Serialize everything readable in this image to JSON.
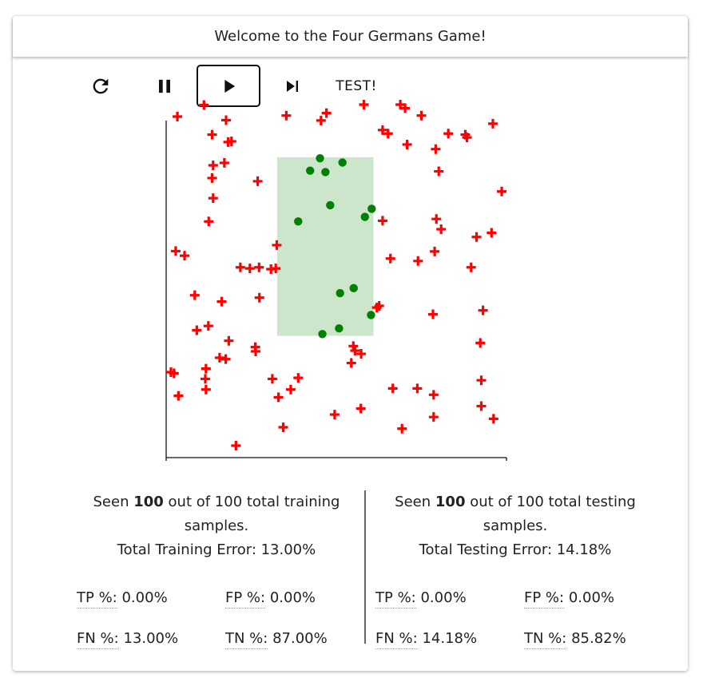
{
  "header": {
    "title": "Welcome to the Four Germans Game!"
  },
  "toolbar": {
    "reset_icon": "refresh-icon",
    "pause_icon": "pause-icon",
    "play_icon": "play-icon",
    "step_icon": "skip-next-icon",
    "test_label": "TEST!"
  },
  "colors": {
    "positive": "#008000",
    "negative": "#ff0000",
    "rectangle_fill": "#cce6cc"
  },
  "chart_data": {
    "type": "scatter",
    "xlim": [
      0,
      100
    ],
    "ylim": [
      0,
      100
    ],
    "rectangle": {
      "x0": 32.6,
      "x1": 60.9,
      "y0": 34.5,
      "y1": 85.1
    },
    "positive": [
      [
        45.2,
        84.8
      ],
      [
        51.8,
        83.6
      ],
      [
        42.3,
        81.3
      ],
      [
        46.8,
        80.9
      ],
      [
        48.2,
        71.5
      ],
      [
        60.4,
        70.5
      ],
      [
        38.8,
        66.9
      ],
      [
        58.4,
        68.2
      ],
      [
        51.1,
        46.6
      ],
      [
        55.1,
        48.0
      ],
      [
        60.2,
        40.4
      ],
      [
        45.9,
        35.0
      ],
      [
        50.8,
        36.6
      ]
    ],
    "negative": [
      [
        3.3,
        96.6
      ],
      [
        11.1,
        99.9
      ],
      [
        17.6,
        95.6
      ],
      [
        35.3,
        96.9
      ],
      [
        45.5,
        95.5
      ],
      [
        47.1,
        97.6
      ],
      [
        58.1,
        100.0
      ],
      [
        68.8,
        100.0
      ],
      [
        70.2,
        99.0
      ],
      [
        75.0,
        96.9
      ],
      [
        13.5,
        91.5
      ],
      [
        18.2,
        89.4
      ],
      [
        19.2,
        89.6
      ],
      [
        63.6,
        92.8
      ],
      [
        65.2,
        91.8
      ],
      [
        70.8,
        88.7
      ],
      [
        79.2,
        87.4
      ],
      [
        82.9,
        91.8
      ],
      [
        87.9,
        91.5
      ],
      [
        88.4,
        90.7
      ],
      [
        96.0,
        94.6
      ],
      [
        13.8,
        82.8
      ],
      [
        17.1,
        83.5
      ],
      [
        13.5,
        79.2
      ],
      [
        26.9,
        78.3
      ],
      [
        13.8,
        73.5
      ],
      [
        80.1,
        81.1
      ],
      [
        98.6,
        75.4
      ],
      [
        12.5,
        66.9
      ],
      [
        63.6,
        67.1
      ],
      [
        79.4,
        67.6
      ],
      [
        80.8,
        64.7
      ],
      [
        91.2,
        62.5
      ],
      [
        95.6,
        63.7
      ],
      [
        2.8,
        58.5
      ],
      [
        5.4,
        57.2
      ],
      [
        32.5,
        60.2
      ],
      [
        21.8,
        53.9
      ],
      [
        24.6,
        53.6
      ],
      [
        27.3,
        53.9
      ],
      [
        30.8,
        53.4
      ],
      [
        32.2,
        53.6
      ],
      [
        65.9,
        56.4
      ],
      [
        74.0,
        55.7
      ],
      [
        78.9,
        58.4
      ],
      [
        89.6,
        53.9
      ],
      [
        8.4,
        46.0
      ],
      [
        16.3,
        44.2
      ],
      [
        27.4,
        45.3
      ],
      [
        61.9,
        42.5
      ],
      [
        62.6,
        43.0
      ],
      [
        78.4,
        40.6
      ],
      [
        93.1,
        41.7
      ],
      [
        9.0,
        36.1
      ],
      [
        12.4,
        37.3
      ],
      [
        18.4,
        33.1
      ],
      [
        26.2,
        31.3
      ],
      [
        26.3,
        30.1
      ],
      [
        15.7,
        28.3
      ],
      [
        17.5,
        27.9
      ],
      [
        55.0,
        31.6
      ],
      [
        55.5,
        30.3
      ],
      [
        57.3,
        29.4
      ],
      [
        54.4,
        26.8
      ],
      [
        92.3,
        32.5
      ],
      [
        1.4,
        24.2
      ],
      [
        2.3,
        23.9
      ],
      [
        11.7,
        25.2
      ],
      [
        11.5,
        22.3
      ],
      [
        11.7,
        19.3
      ],
      [
        31.2,
        22.3
      ],
      [
        38.8,
        22.6
      ],
      [
        36.6,
        19.3
      ],
      [
        33.0,
        17.1
      ],
      [
        66.6,
        19.6
      ],
      [
        73.8,
        19.6
      ],
      [
        78.6,
        17.8
      ],
      [
        92.6,
        21.9
      ],
      [
        3.6,
        17.5
      ],
      [
        49.5,
        12.2
      ],
      [
        57.2,
        13.9
      ],
      [
        92.6,
        14.6
      ],
      [
        78.6,
        11.5
      ],
      [
        96.2,
        11.0
      ],
      [
        34.4,
        8.6
      ],
      [
        69.3,
        8.2
      ],
      [
        20.5,
        3.4
      ]
    ]
  },
  "training": {
    "seen_prefix": "Seen ",
    "seen_count": "100",
    "seen_suffix": " out of 100 total training samples.",
    "error_text": "Total Training Error: 13.00%",
    "tp_label": "TP %:",
    "tp_value": "0.00%",
    "fp_label": "FP %:",
    "fp_value": "0.00%",
    "fn_label": "FN %:",
    "fn_value": "13.00%",
    "tn_label": "TN %:",
    "tn_value": "87.00%"
  },
  "testing": {
    "seen_prefix": "Seen ",
    "seen_count": "100",
    "seen_suffix": " out of 100 total testing samples.",
    "error_text": "Total Testing Error: 14.18%",
    "tp_label": "TP %:",
    "tp_value": "0.00%",
    "fp_label": "FP %:",
    "fp_value": "0.00%",
    "fn_label": "FN %:",
    "fn_value": "14.18%",
    "tn_label": "TN %:",
    "tn_value": "85.82%"
  }
}
